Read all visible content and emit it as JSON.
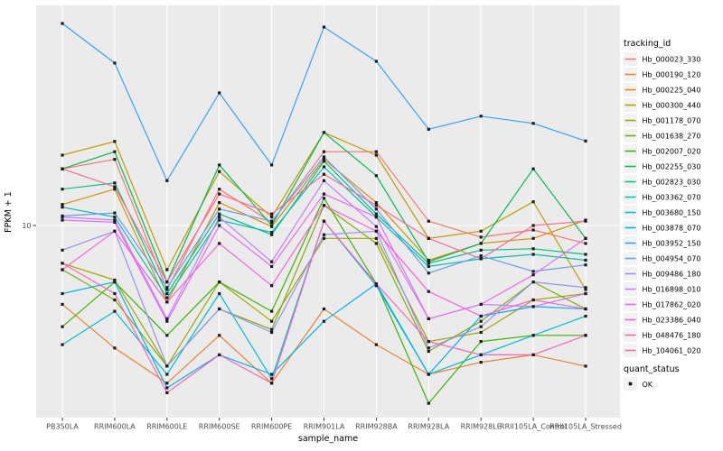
{
  "chart_data": {
    "type": "line",
    "title": "",
    "xlabel": "sample_name",
    "ylabel": "FPKM + 1",
    "y_scale": "log10",
    "ylim": [
      1.8,
      70
    ],
    "y_ticks": [
      10
    ],
    "grid": "major-white-on-gray",
    "legend_position": "right",
    "legend_title": "tracking_id",
    "quant_legend_title": "quant_status",
    "quant_ok_label": "OK",
    "point_marker": "small-black-square",
    "categories": [
      "PB350LA",
      "RRIM600LA",
      "RRIM600LE",
      "RRIM600SE",
      "RRIM600PE",
      "RRIM901LA",
      "RRIM928BA",
      "RRIM928LA",
      "RRIM928LE",
      "RRII105LA_Control",
      "RRII105LA_Stressed"
    ],
    "series": [
      {
        "name": "Hb_000023_330",
        "color": "#F8766D",
        "values": [
          16.7,
          18.2,
          5.6,
          13.9,
          10.3,
          19.5,
          19.5,
          10.4,
          9.0,
          9.6,
          8.5
        ]
      },
      {
        "name": "Hb_000190_120",
        "color": "#EA8331",
        "values": [
          4.9,
          3.3,
          2.4,
          3.7,
          2.4,
          4.7,
          3.4,
          2.6,
          2.9,
          3.1,
          2.8
        ]
      },
      {
        "name": "Hb_000225_040",
        "color": "#D89000",
        "values": [
          12.1,
          13.9,
          5.0,
          12.3,
          9.9,
          18.2,
          12.3,
          7.3,
          8.5,
          8.9,
          10.5
        ]
      },
      {
        "name": "Hb_000300_440",
        "color": "#C09B00",
        "values": [
          18.9,
          21.4,
          6.7,
          16.3,
          10.8,
          23.2,
          18.9,
          8.9,
          9.5,
          12.4,
          5.6
        ]
      },
      {
        "name": "Hb_001178_070",
        "color": "#A3A500",
        "values": [
          7.1,
          6.1,
          2.8,
          6.0,
          4.2,
          8.9,
          8.9,
          3.5,
          3.8,
          5.1,
          5.4
        ]
      },
      {
        "name": "Hb_001638_270",
        "color": "#7CAE00",
        "values": [
          6.7,
          5.1,
          2.8,
          4.7,
          3.9,
          12.0,
          8.5,
          3.2,
          4.2,
          6.0,
          4.7
        ]
      },
      {
        "name": "Hb_002007_020",
        "color": "#39B600",
        "values": [
          4.0,
          6.0,
          3.7,
          6.0,
          4.6,
          12.8,
          5.9,
          2.0,
          3.5,
          3.7,
          3.7
        ]
      },
      {
        "name": "Hb_002255_030",
        "color": "#00BB4E",
        "values": [
          16.7,
          19.5,
          6.0,
          17.3,
          10.0,
          23.2,
          15.7,
          7.2,
          8.5,
          16.7,
          8.9
        ]
      },
      {
        "name": "Hb_002823_030",
        "color": "#00C087",
        "values": [
          13.9,
          14.7,
          5.4,
          11.1,
          9.2,
          17.9,
          11.1,
          7.1,
          8.0,
          8.1,
          7.7
        ]
      },
      {
        "name": "Hb_003362_070",
        "color": "#00C0AF",
        "values": [
          11.8,
          10.8,
          5.2,
          10.5,
          9.4,
          17.0,
          10.8,
          6.9,
          7.4,
          7.7,
          7.3
        ]
      },
      {
        "name": "Hb_003680_150",
        "color": "#00BCD8",
        "values": [
          3.4,
          4.6,
          2.6,
          5.4,
          2.5,
          10.4,
          5.8,
          2.6,
          3.1,
          3.7,
          4.4
        ]
      },
      {
        "name": "Hb_003878_070",
        "color": "#00B0F6",
        "values": [
          5.4,
          6.0,
          2.3,
          3.1,
          2.6,
          4.2,
          5.9,
          2.6,
          4.4,
          4.8,
          4.7
        ]
      },
      {
        "name": "Hb_003952_150",
        "color": "#35A2FF",
        "values": [
          62.3,
          43.5,
          15.0,
          33.2,
          17.3,
          60.3,
          44.2,
          23.9,
          26.9,
          25.2,
          21.5
        ]
      },
      {
        "name": "Hb_004954_070",
        "color": "#619CFF",
        "values": [
          10.9,
          11.2,
          5.7,
          11.6,
          10.4,
          18.6,
          11.6,
          6.5,
          7.6,
          6.6,
          7.0
        ]
      },
      {
        "name": "Hb_009486_180",
        "color": "#9590FF",
        "values": [
          8.0,
          9.5,
          2.8,
          4.7,
          3.8,
          9.2,
          9.5,
          3.3,
          4.0,
          6.0,
          5.7
        ]
      },
      {
        "name": "Hb_016898_010",
        "color": "#C77CFF",
        "values": [
          10.8,
          10.5,
          4.3,
          10.8,
          7.2,
          15.0,
          9.9,
          4.3,
          4.9,
          4.8,
          5.4
        ]
      },
      {
        "name": "Hb_017862_020",
        "color": "#E76BF3",
        "values": [
          10.5,
          10.3,
          4.2,
          10.0,
          6.9,
          13.3,
          10.8,
          4.3,
          4.9,
          6.4,
          8.9
        ]
      },
      {
        "name": "Hb_023386_040",
        "color": "#FA62DB",
        "values": [
          6.7,
          9.5,
          5.0,
          8.5,
          5.8,
          12.0,
          9.5,
          5.5,
          4.4,
          5.1,
          4.7
        ]
      },
      {
        "name": "Hb_048476_180",
        "color": "#FF62BC",
        "values": [
          7.1,
          5.4,
          2.2,
          3.1,
          2.4,
          10.4,
          5.9,
          3.5,
          3.1,
          3.1,
          3.7
        ]
      },
      {
        "name": "Hb_104061_020",
        "color": "#FF6A98",
        "values": [
          16.7,
          14.2,
          6.0,
          13.3,
          11.1,
          15.9,
          12.0,
          8.9,
          7.4,
          10.0,
          10.4
        ]
      }
    ],
    "quant_status": {
      "title": "quant_status",
      "items": [
        {
          "label": "OK",
          "marker": "filled-black-square"
        }
      ]
    }
  },
  "colors": {
    "panel_bg": "#EBEBEB",
    "grid_line": "#FFFFFF",
    "tick_mark": "#333333",
    "tick_text": "#4D4D4D",
    "point": "#1A1A1A",
    "legend_key_bg": "#F2F2F2",
    "figure_bg": "#FFFFFF"
  }
}
